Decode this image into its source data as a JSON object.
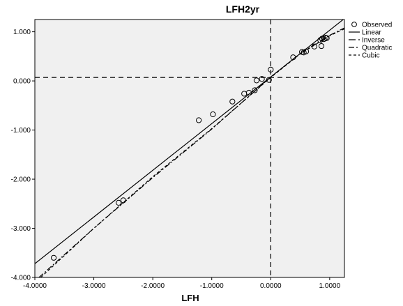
{
  "chart_data": {
    "type": "scatter",
    "title": "LFH2yr",
    "xlabel": "LFH",
    "ylabel": "",
    "xlim": [
      -4.0,
      1.25
    ],
    "ylim": [
      -4.0,
      1.25
    ],
    "x_ticks": [
      "-4.0000",
      "-3.0000",
      "-2.0000",
      "-1.0000",
      "0.0000",
      "1.0000"
    ],
    "x_tick_values": [
      -4,
      -3,
      -2,
      -1,
      0,
      1
    ],
    "y_ticks": [
      "1.000",
      "0.000",
      "-1.000",
      "-2.000",
      "-3.000",
      "-4.000"
    ],
    "y_tick_values": [
      1,
      0,
      -1,
      -2,
      -3,
      -4
    ],
    "grid": false,
    "legend_position": "right",
    "background_color": "#f0f0f0",
    "reference_lines": {
      "x": 0.0,
      "y": 0.07
    },
    "legend": [
      {
        "label": "Observed",
        "symbol": "circle"
      },
      {
        "label": "Linear",
        "symbol": "solid"
      },
      {
        "label": "Inverse",
        "symbol": "long-dash"
      },
      {
        "label": "Quadratic",
        "symbol": "dash-dot"
      },
      {
        "label": "Cubic",
        "symbol": "short-dash"
      }
    ],
    "observed": [
      {
        "x": -3.68,
        "y": -3.6
      },
      {
        "x": -2.58,
        "y": -2.48
      },
      {
        "x": -2.5,
        "y": -2.43
      },
      {
        "x": -1.22,
        "y": -0.8
      },
      {
        "x": -0.98,
        "y": -0.68
      },
      {
        "x": -0.65,
        "y": -0.42
      },
      {
        "x": -0.45,
        "y": -0.26
      },
      {
        "x": -0.37,
        "y": -0.24
      },
      {
        "x": -0.27,
        "y": -0.19
      },
      {
        "x": -0.24,
        "y": 0.01
      },
      {
        "x": -0.15,
        "y": 0.04
      },
      {
        "x": -0.03,
        "y": 0.02
      },
      {
        "x": 0.0,
        "y": 0.23
      },
      {
        "x": 0.38,
        "y": 0.48
      },
      {
        "x": 0.53,
        "y": 0.59
      },
      {
        "x": 0.56,
        "y": 0.58
      },
      {
        "x": 0.6,
        "y": 0.6
      },
      {
        "x": 0.74,
        "y": 0.7
      },
      {
        "x": 0.84,
        "y": 0.83
      },
      {
        "x": 0.86,
        "y": 0.71
      },
      {
        "x": 0.87,
        "y": 0.86
      },
      {
        "x": 0.9,
        "y": 0.85
      },
      {
        "x": 0.93,
        "y": 0.88
      },
      {
        "x": 0.95,
        "y": 0.87
      }
    ],
    "series": [
      {
        "name": "Linear",
        "style": "solid",
        "x": [
          -4.0,
          1.25
        ],
        "y": [
          -3.72,
          1.27
        ]
      },
      {
        "name": "Quadratic",
        "style": "dash-dot",
        "x": [
          -3.93,
          -3.0,
          -2.0,
          -1.0,
          0.0,
          0.5,
          1.0,
          1.25
        ],
        "y": [
          -4.0,
          -3.0,
          -1.97,
          -0.98,
          0.08,
          0.56,
          0.93,
          1.08
        ]
      },
      {
        "name": "Cubic",
        "style": "short-dash",
        "x": [
          -3.9,
          -3.0,
          -2.0,
          -1.0,
          0.0,
          0.5,
          1.0,
          1.25
        ],
        "y": [
          -4.0,
          -3.0,
          -1.95,
          -0.97,
          0.07,
          0.55,
          0.92,
          1.06
        ]
      }
    ]
  }
}
